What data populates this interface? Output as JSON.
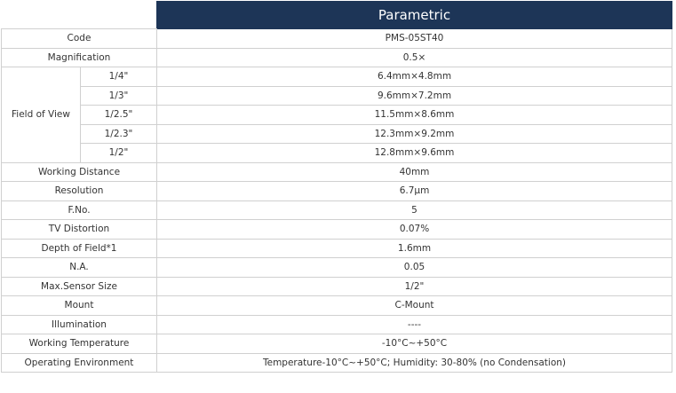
{
  "header": {
    "title": "Parametric"
  },
  "table": {
    "rows_before": [
      [
        "Code",
        "PMS-05ST40"
      ],
      [
        "Magnification",
        "0.5×"
      ]
    ],
    "field_of_view": {
      "label": "Field of View",
      "rows": [
        [
          "1/4\"",
          "6.4mm×4.8mm"
        ],
        [
          "1/3\"",
          "9.6mm×7.2mm"
        ],
        [
          "1/2.5\"",
          "11.5mm×8.6mm"
        ],
        [
          "1/2.3\"",
          "12.3mm×9.2mm"
        ],
        [
          "1/2\"",
          "12.8mm×9.6mm"
        ]
      ]
    },
    "rows_after": [
      [
        "Working Distance",
        "40mm"
      ],
      [
        "Resolution",
        "6.7μm"
      ],
      [
        "F.No.",
        "5"
      ],
      [
        "TV Distortion",
        "0.07%"
      ],
      [
        "Depth of Field*1",
        "1.6mm"
      ],
      [
        "N.A.",
        "0.05"
      ],
      [
        "Max.Sensor Size",
        "1/2\""
      ],
      [
        "Mount",
        "C-Mount"
      ],
      [
        "Illumination",
        "----"
      ],
      [
        "Working Temperature",
        "-10°C~+50°C"
      ],
      [
        "Operating Environment",
        "Temperature-10°C~+50°C;  Humidity: 30-80% (no Condensation)"
      ]
    ]
  }
}
